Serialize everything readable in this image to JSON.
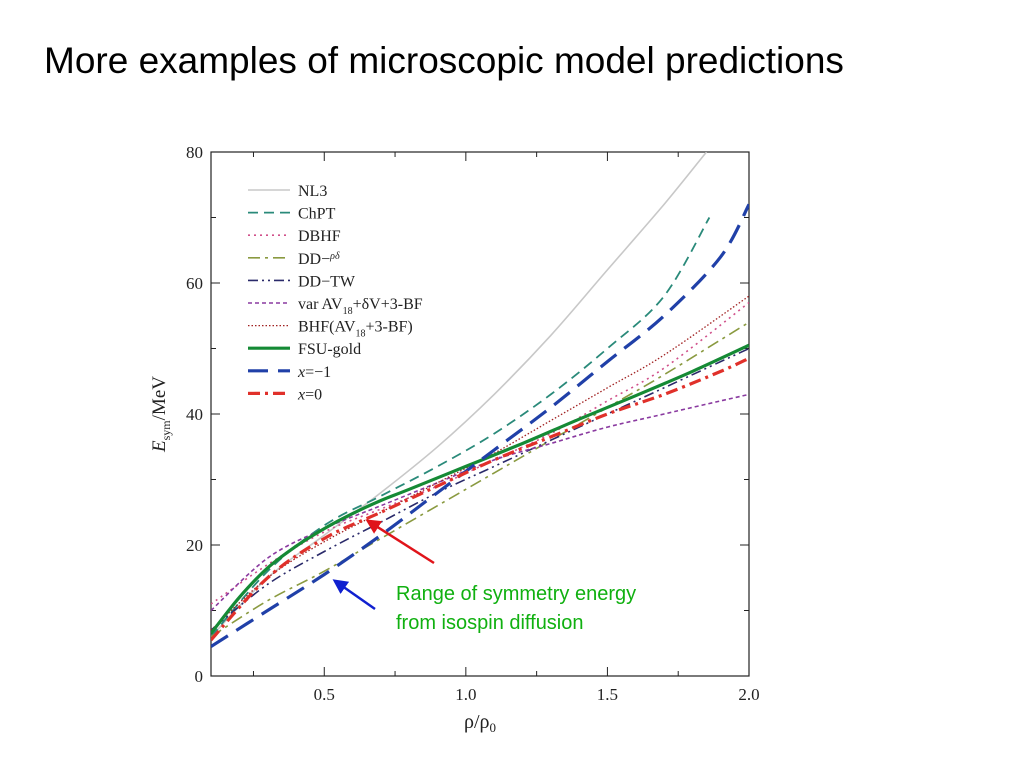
{
  "slide": {
    "title": "More examples of microscopic model predictions"
  },
  "annotation": {
    "lines": [
      "Range of symmetry energy",
      "from isospin diffusion"
    ],
    "color": "#10b010",
    "arrow_colors": [
      "#e0141a",
      "#1020d0"
    ]
  },
  "chart_data": {
    "type": "line",
    "xlabel": "ρ/ρ0",
    "ylabel": "E_sym/MeV",
    "ylabel_main": "E",
    "ylabel_sub": "sym",
    "ylabel_tail": "/MeV",
    "xlim": [
      0.1,
      2.0
    ],
    "ylim": [
      0,
      80
    ],
    "xticks": [
      0.5,
      1.0,
      1.5,
      2.0
    ],
    "xtick_labels": [
      "0.5",
      "1.0",
      "1.5",
      "2.0"
    ],
    "yticks": [
      0,
      20,
      40,
      60,
      80
    ],
    "ytick_labels": [
      "0",
      "20",
      "40",
      "60",
      "80"
    ],
    "grid": false,
    "legend": "top-left",
    "series": [
      {
        "name": "NL3",
        "label": "NL3",
        "color": "#c8c8c8",
        "dash": "solid",
        "width": 1.6,
        "x": [
          0.1,
          0.3,
          0.5,
          0.7,
          0.9,
          1.1,
          1.3,
          1.5,
          1.7,
          1.85
        ],
        "y": [
          6,
          15,
          21.5,
          28,
          35,
          43,
          52,
          62,
          72,
          80
        ]
      },
      {
        "name": "ChPT",
        "label": "ChPT",
        "color": "#2a8a7a",
        "dash": "dashed",
        "width": 1.8,
        "x": [
          0.1,
          0.3,
          0.5,
          0.7,
          0.9,
          1.1,
          1.3,
          1.5,
          1.7,
          1.86
        ],
        "y": [
          6,
          16,
          23,
          27.5,
          32,
          37,
          43,
          50,
          58,
          70
        ]
      },
      {
        "name": "DBHF",
        "label": "DBHF",
        "color": "#d0508a",
        "dash": "dotted",
        "width": 1.6,
        "x": [
          0.1,
          0.3,
          0.5,
          0.7,
          0.9,
          1.1,
          1.3,
          1.5,
          1.7,
          2.0
        ],
        "y": [
          11,
          17,
          22,
          25.5,
          29,
          33,
          37,
          42,
          47,
          57
        ]
      },
      {
        "name": "DD-ρδ",
        "label": "DD−",
        "label_super": "ρδ",
        "color": "#8a9a40",
        "dash": "dashdot",
        "width": 1.6,
        "x": [
          0.1,
          0.3,
          0.5,
          0.7,
          0.9,
          1.1,
          1.3,
          1.5,
          1.7,
          2.0
        ],
        "y": [
          6,
          11.5,
          16,
          21,
          26,
          31,
          36,
          41,
          46,
          54
        ]
      },
      {
        "name": "DD-TW",
        "label": "DD−TW",
        "color": "#2a2a6a",
        "dash": "dashdotdot",
        "width": 1.6,
        "x": [
          0.1,
          0.3,
          0.5,
          0.7,
          0.9,
          1.1,
          1.3,
          1.5,
          1.7,
          2.0
        ],
        "y": [
          7,
          14,
          19,
          23.5,
          28,
          32,
          36,
          40,
          44,
          50
        ]
      },
      {
        "name": "var AV18+δV+3-BF",
        "label": "var AV",
        "label_sub": "18",
        "label_tail": "+δV+3-BF",
        "color": "#8a3aa0",
        "dash": "shortdash",
        "width": 1.6,
        "x": [
          0.1,
          0.3,
          0.5,
          0.7,
          0.9,
          1.1,
          1.3,
          1.5,
          1.7,
          2.0
        ],
        "y": [
          10,
          18,
          22.5,
          26,
          29.5,
          33,
          35.5,
          38,
          40,
          43
        ]
      },
      {
        "name": "BHF(AV18+3-BF)",
        "label": "BHF(AV",
        "label_sub": "18",
        "label_tail": "+3-BF)",
        "color": "#a02020",
        "dash": "densedot",
        "width": 1.3,
        "x": [
          0.1,
          0.3,
          0.5,
          0.7,
          0.9,
          1.1,
          1.3,
          1.5,
          1.7,
          2.0
        ],
        "y": [
          7,
          15,
          20.5,
          25,
          29.5,
          34,
          39,
          44,
          49,
          58
        ]
      },
      {
        "name": "FSU-gold",
        "label": "FSU-gold",
        "color": "#158a35",
        "dash": "solid",
        "width": 3.2,
        "x": [
          0.1,
          0.2,
          0.3,
          0.4,
          0.5,
          0.6,
          0.7,
          0.8,
          1.0,
          1.2,
          1.4,
          1.6,
          1.8,
          2.0
        ],
        "y": [
          6.5,
          12,
          16.5,
          19.8,
          22.5,
          24.8,
          26.8,
          28.5,
          32,
          35.5,
          39.2,
          42.8,
          46.5,
          50.5
        ]
      },
      {
        "name": "x=-1",
        "label": "x=−1",
        "label_italic_prefix": "x",
        "label_rest": "=−1",
        "color": "#2040a8",
        "dash": "longdash",
        "width": 3.2,
        "x": [
          0.1,
          0.3,
          0.5,
          0.7,
          0.9,
          1.1,
          1.3,
          1.5,
          1.7,
          1.9,
          2.0
        ],
        "y": [
          4.5,
          10,
          15.5,
          21.5,
          28,
          34.5,
          41,
          48,
          55,
          64,
          72
        ]
      },
      {
        "name": "x=0",
        "label": "x=0",
        "label_italic_prefix": "x",
        "label_rest": "=0",
        "color": "#e0302a",
        "dash": "dashdot",
        "width": 3.2,
        "x": [
          0.1,
          0.3,
          0.5,
          0.7,
          0.9,
          1.1,
          1.3,
          1.5,
          1.7,
          1.9,
          2.0
        ],
        "y": [
          5.5,
          15,
          21,
          25,
          29,
          33,
          36.5,
          40,
          43,
          46.5,
          48.5
        ]
      }
    ]
  }
}
